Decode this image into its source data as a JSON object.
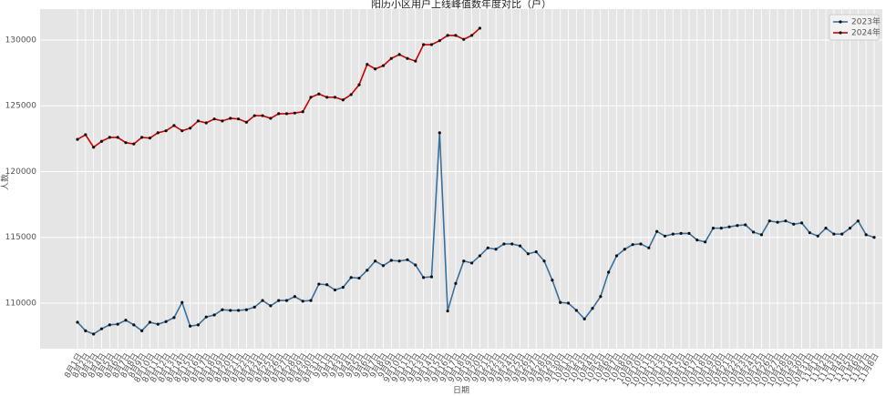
{
  "chart_data": {
    "type": "line",
    "title": "阳历小区用户上线峰值数年度对比（户）",
    "x_label": "日期",
    "y_label": "人数",
    "categories": [
      "8月1日",
      "8月2日",
      "8月3日",
      "8月4日",
      "8月5日",
      "8月6日",
      "8月7日",
      "8月8日",
      "8月9日",
      "8月10日",
      "8月11日",
      "8月12日",
      "8月13日",
      "8月14日",
      "8月15日",
      "8月16日",
      "8月17日",
      "8月18日",
      "8月19日",
      "8月20日",
      "8月21日",
      "8月22日",
      "8月23日",
      "8月24日",
      "8月25日",
      "8月26日",
      "8月27日",
      "8月28日",
      "8月29日",
      "8月30日",
      "8月31日",
      "9月1日",
      "9月2日",
      "9月3日",
      "9月4日",
      "9月5日",
      "9月6日",
      "9月7日",
      "9月8日",
      "9月9日",
      "9月10日",
      "9月11日",
      "9月12日",
      "9月13日",
      "9月14日",
      "9月15日",
      "9月16日",
      "9月17日",
      "9月18日",
      "9月19日",
      "9月20日",
      "9月21日",
      "9月22日",
      "9月23日",
      "9月24日",
      "9月25日",
      "9月26日",
      "9月27日",
      "9月28日",
      "9月29日",
      "9月30日",
      "10月1日",
      "10月2日",
      "10月3日",
      "10月4日",
      "10月5日",
      "10月6日",
      "10月7日",
      "10月8日",
      "10月9日",
      "10月10日",
      "10月11日",
      "10月12日",
      "10月13日",
      "10月14日",
      "10月15日",
      "10月16日",
      "10月17日",
      "10月18日",
      "10月19日",
      "10月20日",
      "10月21日",
      "10月22日",
      "10月23日",
      "10月24日",
      "10月25日",
      "10月26日",
      "10月27日",
      "10月28日",
      "10月29日",
      "10月30日",
      "10月31日",
      "11月1日",
      "11月2日",
      "11月3日",
      "11月4日",
      "11月5日",
      "11月6日",
      "11月7日",
      "11月8日"
    ],
    "series": [
      {
        "name": "2023年",
        "color": "#3a6f9e",
        "values": [
          108550,
          107900,
          107650,
          108050,
          108350,
          108400,
          108700,
          108350,
          107900,
          108550,
          108400,
          108600,
          108900,
          110050,
          108250,
          108350,
          108950,
          109100,
          109500,
          109450,
          109450,
          109500,
          109700,
          110200,
          109800,
          110200,
          110200,
          110500,
          110150,
          110200,
          111450,
          111400,
          111000,
          111200,
          111950,
          111900,
          112500,
          113200,
          112850,
          113250,
          113200,
          113300,
          112900,
          111950,
          112000,
          122950,
          109400,
          111500,
          113200,
          113050,
          113600,
          114200,
          114100,
          114500,
          114500,
          114350,
          113750,
          113900,
          113200,
          111750,
          110050,
          110000,
          109450,
          108800,
          109600,
          110500,
          112350,
          113600,
          114100,
          114450,
          114500,
          114200,
          115450,
          115100,
          115250,
          115300,
          115300,
          114800,
          114650,
          115700,
          115700,
          115800,
          115900,
          115950,
          115400,
          115200,
          116250,
          116150,
          116250,
          116000,
          116100,
          115350,
          115100,
          115700,
          115250,
          115250,
          115700,
          116250,
          115200,
          115000
        ]
      },
      {
        "name": "2024年",
        "color": "#cc0000",
        "values": [
          122450,
          122800,
          121850,
          122300,
          122600,
          122600,
          122200,
          122100,
          122600,
          122550,
          122950,
          123100,
          123500,
          123100,
          123300,
          123850,
          123700,
          124000,
          123850,
          124050,
          124000,
          123750,
          124250,
          124250,
          124050,
          124400,
          124400,
          124450,
          124550,
          125650,
          125900,
          125650,
          125650,
          125450,
          125850,
          126600,
          128150,
          127800,
          128050,
          128600,
          128900,
          128600,
          128400,
          129650,
          129650,
          129950,
          130350,
          130350,
          130050,
          130350,
          130900,
          null,
          null,
          null,
          null,
          null,
          null,
          null,
          null,
          null,
          null,
          null,
          null,
          null,
          null,
          null,
          null,
          null,
          null,
          null,
          null,
          null,
          null,
          null,
          null,
          null,
          null,
          null,
          null,
          null,
          null,
          null,
          null,
          null,
          null,
          null,
          null,
          null,
          null,
          null,
          null,
          null,
          null,
          null,
          null,
          null,
          null,
          null,
          null,
          null
        ]
      }
    ],
    "ylim": [
      106540,
      132350
    ],
    "yticks": [
      110000,
      115000,
      120000,
      125000,
      130000
    ],
    "grid": true,
    "legend": "upper right"
  }
}
